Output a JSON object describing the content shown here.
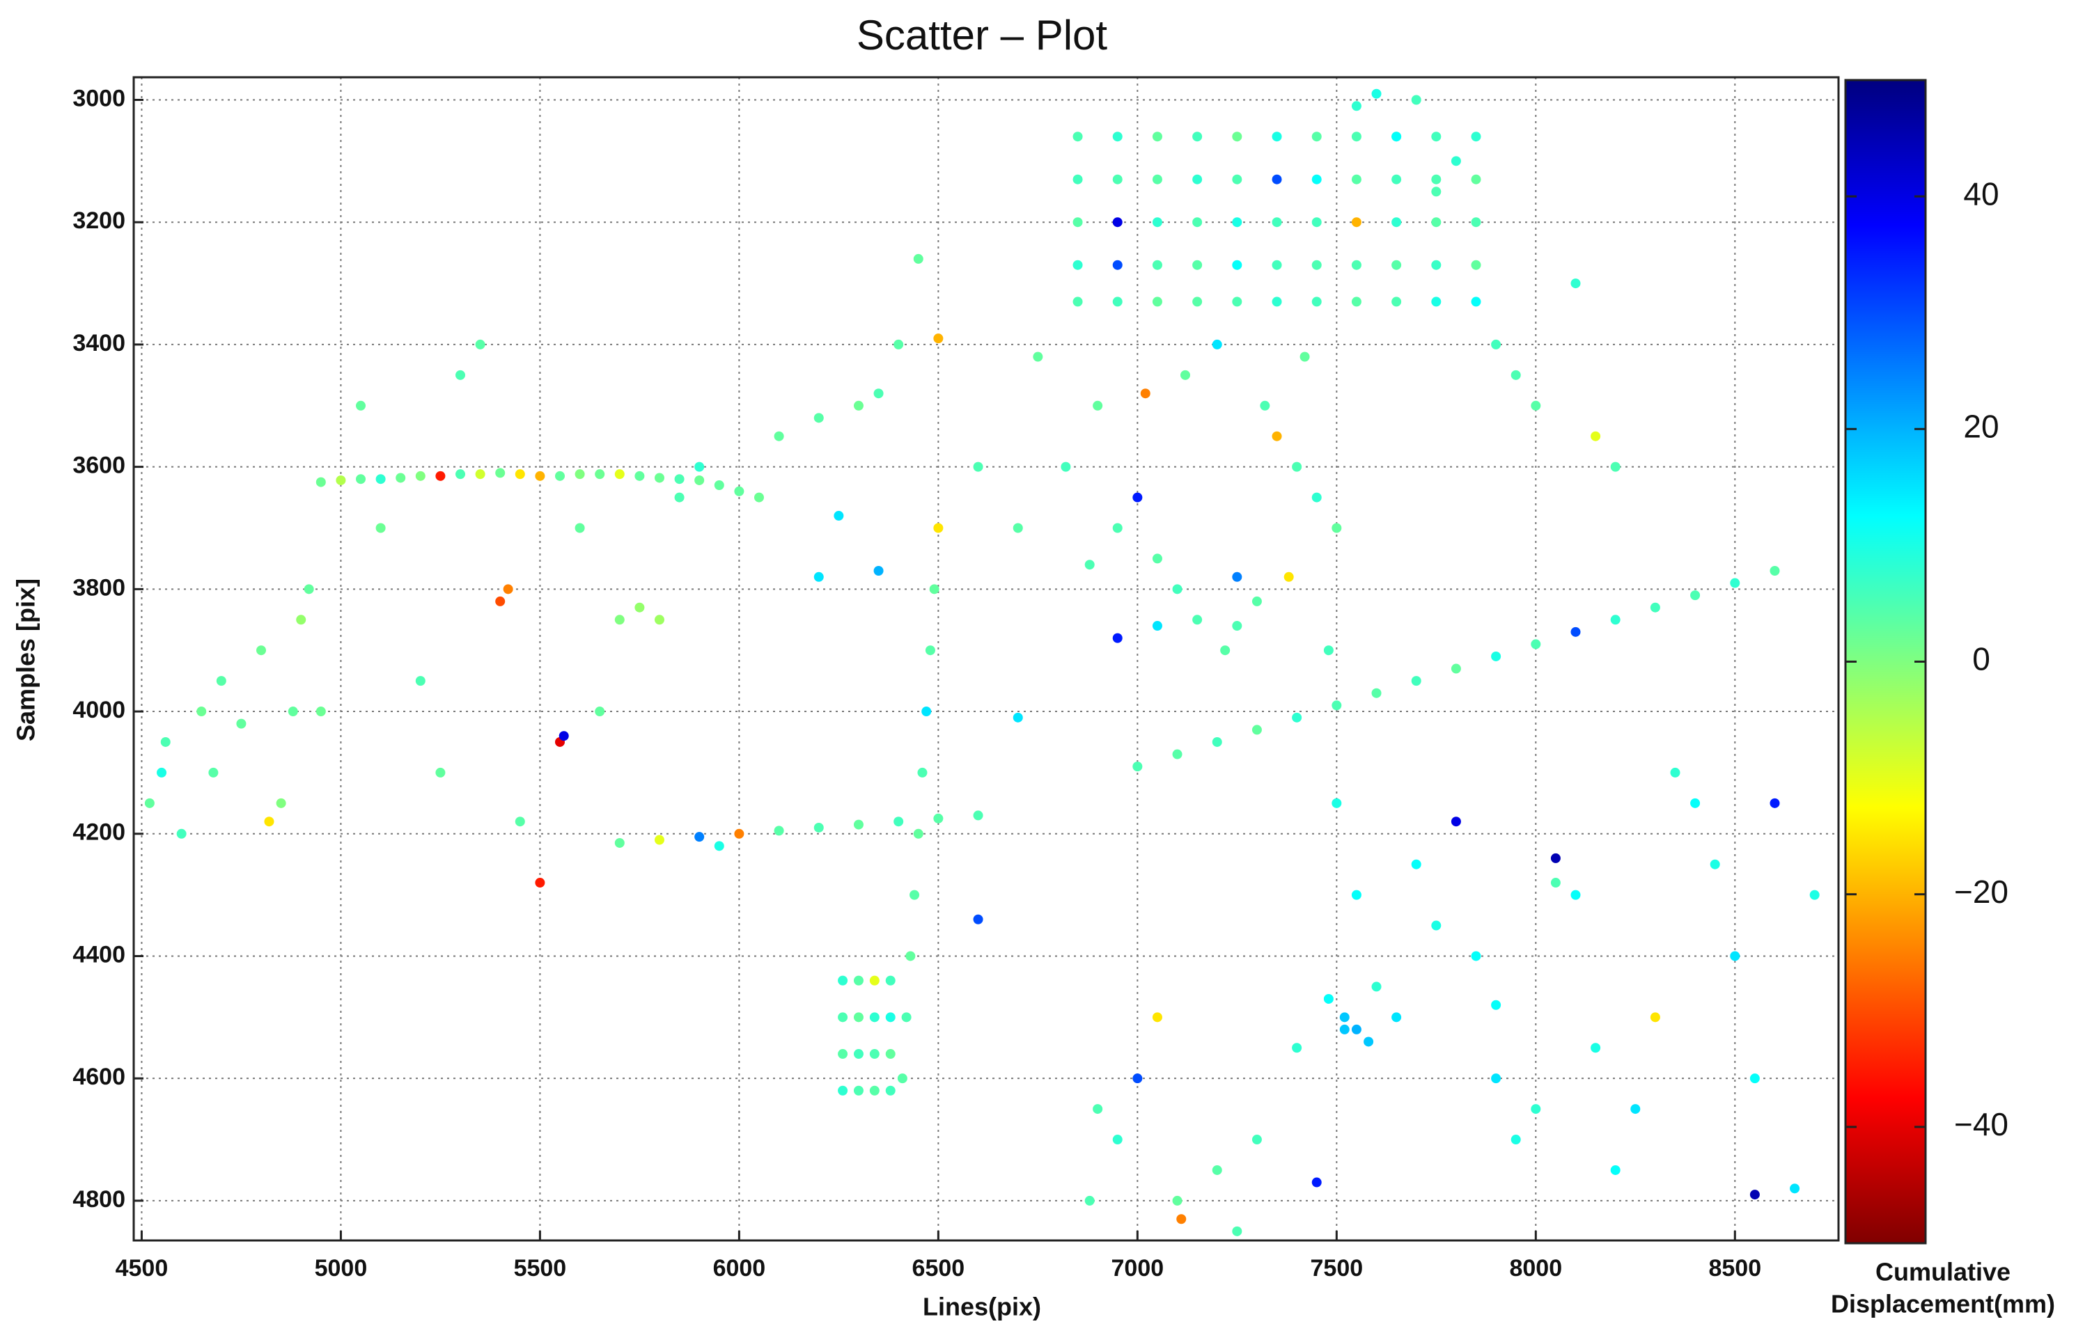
{
  "chart_data": {
    "type": "scatter",
    "title": "Scatter – Plot",
    "x_label": "Lines(pix)",
    "y_label": "Samples [pix]",
    "colorbar_label": [
      "Cumulative",
      "Displacement(mm)"
    ],
    "colormap": "jet",
    "colormap_reversed": true,
    "grid": true,
    "yaxis_reversed": true,
    "xlim": [
      4480,
      8760
    ],
    "xticks": [
      4500,
      5000,
      5500,
      6000,
      6500,
      7000,
      7500,
      8000,
      8500
    ],
    "ylim": [
      2963,
      4865
    ],
    "yticks": [
      3000,
      3200,
      3400,
      3600,
      3800,
      4000,
      4200,
      4400,
      4600,
      4800
    ],
    "clim": [
      -50,
      50
    ],
    "cticks": [
      40,
      20,
      0,
      {
        "value": -20,
        "label": "−20"
      },
      {
        "value": -40,
        "label": "−40"
      }
    ],
    "x": [
      4950,
      5000,
      5050,
      5100,
      5150,
      5200,
      5250,
      5300,
      5350,
      5400,
      5450,
      5500,
      5550,
      5600,
      5650,
      5700,
      5750,
      5800,
      5850,
      5900,
      5950,
      6000,
      6050,
      6850,
      6950,
      7050,
      7150,
      7250,
      7350,
      7450,
      7550,
      7650,
      7750,
      7850,
      6850,
      6950,
      7050,
      7150,
      7250,
      7350,
      7450,
      7550,
      7650,
      7750,
      7850,
      6850,
      6950,
      7050,
      7150,
      7250,
      7350,
      7450,
      7550,
      7650,
      7750,
      7850,
      6850,
      6950,
      7050,
      7150,
      7250,
      7350,
      7450,
      7550,
      7650,
      7750,
      7850,
      6850,
      6950,
      7050,
      7150,
      7250,
      7350,
      7450,
      7550,
      7650,
      7750,
      7850,
      7000,
      7100,
      7200,
      7300,
      7400,
      7500,
      7600,
      7700,
      7800,
      7900,
      8000,
      8100,
      8200,
      8300,
      8400,
      8500,
      8600,
      5700,
      5800,
      5900,
      6000,
      6100,
      6200,
      6300,
      6400,
      6500,
      6600,
      6500,
      6490,
      6480,
      6470,
      6460,
      6450,
      6440,
      6430,
      6420,
      6410,
      6260,
      6300,
      6340,
      6380,
      6260,
      6300,
      6340,
      6380,
      6260,
      6300,
      6340,
      6380,
      6260,
      6300,
      6340,
      6380,
      7500,
      7550,
      7600,
      7650,
      7700,
      7750,
      7800,
      7850,
      7900,
      7950,
      8000,
      8050,
      8100,
      8150,
      8200,
      8250,
      8300,
      8350,
      8400,
      8450,
      8500,
      8550,
      8600,
      8650,
      8700,
      7520,
      7580,
      7900,
      8050,
      8550,
      6900,
      6950,
      7000,
      7050,
      7100,
      7150,
      7200,
      7250,
      7300,
      7350,
      7400,
      7450,
      7500,
      6820,
      6880,
      7020,
      7120,
      7220,
      7320,
      7420,
      6950,
      7050,
      7250,
      7380,
      7480,
      4520,
      4560,
      4600,
      4650,
      4700,
      4750,
      4800,
      4850,
      4900,
      4920,
      4550,
      4680,
      4820,
      4880,
      4950,
      5050,
      5100,
      5300,
      5350,
      5400,
      5420,
      5500,
      5550,
      5560,
      5600,
      5700,
      5750,
      5800,
      5850,
      5900,
      5200,
      5250,
      5450,
      5650,
      5950,
      6100,
      6200,
      6300,
      6350,
      6400,
      6450,
      6500,
      6600,
      6700,
      6750,
      6200,
      6250,
      6350,
      6600,
      6700,
      6900,
      6950,
      7000,
      7050,
      7100,
      7200,
      7250,
      7300,
      7400,
      7450,
      7480,
      7520,
      7550,
      6880,
      7110,
      7550,
      7600,
      7650,
      7700,
      7750,
      7800,
      7900,
      7950,
      8000,
      8100,
      8150,
      8200
    ],
    "y": [
      3625,
      3622,
      3620,
      3620,
      3618,
      3615,
      3615,
      3612,
      3612,
      3610,
      3612,
      3615,
      3615,
      3612,
      3612,
      3612,
      3615,
      3618,
      3620,
      3622,
      3630,
      3640,
      3650,
      3060,
      3060,
      3060,
      3060,
      3060,
      3060,
      3060,
      3060,
      3060,
      3060,
      3060,
      3130,
      3130,
      3130,
      3130,
      3130,
      3130,
      3130,
      3130,
      3130,
      3130,
      3130,
      3200,
      3200,
      3200,
      3200,
      3200,
      3200,
      3200,
      3200,
      3200,
      3200,
      3200,
      3270,
      3270,
      3270,
      3270,
      3270,
      3270,
      3270,
      3270,
      3270,
      3270,
      3270,
      3330,
      3330,
      3330,
      3330,
      3330,
      3330,
      3330,
      3330,
      3330,
      3330,
      3330,
      4090,
      4070,
      4050,
      4030,
      4010,
      3990,
      3970,
      3950,
      3930,
      3910,
      3890,
      3870,
      3850,
      3830,
      3810,
      3790,
      3770,
      4215,
      4210,
      4205,
      4200,
      4195,
      4190,
      4185,
      4180,
      4175,
      4170,
      3700,
      3800,
      3900,
      4000,
      4100,
      4200,
      4300,
      4400,
      4500,
      4600,
      4440,
      4440,
      4440,
      4440,
      4500,
      4500,
      4500,
      4500,
      4560,
      4560,
      4560,
      4560,
      4620,
      4620,
      4620,
      4620,
      4150,
      4300,
      4450,
      4500,
      4250,
      4350,
      4180,
      4400,
      4600,
      4700,
      4650,
      4240,
      4300,
      4550,
      4750,
      4650,
      4500,
      4100,
      4150,
      4250,
      4400,
      4600,
      4150,
      4780,
      4300,
      4520,
      4540,
      4480,
      4280,
      4790,
      3500,
      3700,
      3650,
      3750,
      3800,
      3850,
      3400,
      3780,
      3820,
      3550,
      3600,
      3650,
      3700,
      3600,
      3760,
      3480,
      3450,
      3900,
      3500,
      3420,
      3880,
      3860,
      3860,
      3780,
      3900,
      4150,
      4050,
      4200,
      4000,
      3950,
      4020,
      3900,
      4150,
      3850,
      3800,
      4100,
      4100,
      4180,
      4000,
      4000,
      3500,
      3700,
      3450,
      3400,
      3820,
      3800,
      4280,
      4050,
      4040,
      3700,
      3850,
      3830,
      3850,
      3650,
      3600,
      3950,
      4100,
      4180,
      4000,
      4220,
      3550,
      3520,
      3500,
      3480,
      3400,
      3260,
      3390,
      3600,
      3700,
      3420,
      3780,
      3680,
      3770,
      4340,
      4010,
      4650,
      4700,
      4600,
      4500,
      4800,
      4750,
      4850,
      4700,
      4550,
      4770,
      4470,
      4500,
      4520,
      4800,
      4830,
      3010,
      2990,
      3060,
      3000,
      3150,
      3100,
      3400,
      3450,
      3500,
      3300,
      3550,
      3600
    ],
    "values": [
      2,
      -5,
      3,
      8,
      2,
      0,
      -35,
      5,
      -8,
      2,
      -15,
      -20,
      3,
      0,
      2,
      -10,
      3,
      2,
      5,
      2,
      3,
      3,
      2,
      5,
      8,
      3,
      6,
      2,
      10,
      4,
      5,
      3,
      6,
      8,
      6,
      5,
      4,
      8,
      5,
      30,
      12,
      4,
      6,
      5,
      3,
      4,
      40,
      8,
      5,
      10,
      6,
      6,
      -20,
      8,
      4,
      5,
      8,
      30,
      5,
      4,
      12,
      6,
      5,
      5,
      4,
      7,
      3,
      5,
      6,
      3,
      4,
      5,
      8,
      6,
      4,
      5,
      10,
      12,
      5,
      4,
      6,
      3,
      8,
      5,
      4,
      6,
      3,
      10,
      5,
      30,
      8,
      6,
      5,
      8,
      4,
      3,
      -10,
      25,
      -25,
      4,
      5,
      3,
      6,
      4,
      5,
      -15,
      3,
      4,
      15,
      5,
      3,
      4,
      3,
      5,
      4,
      8,
      4,
      -10,
      6,
      5,
      3,
      8,
      10,
      4,
      6,
      5,
      3,
      8,
      5,
      4,
      6,
      10,
      12,
      8,
      15,
      12,
      10,
      40,
      12,
      15,
      10,
      8,
      45,
      12,
      10,
      12,
      15,
      -15,
      8,
      12,
      10,
      15,
      12,
      35,
      15,
      10,
      18,
      18,
      12,
      5,
      45,
      3,
      5,
      35,
      4,
      6,
      5,
      15,
      25,
      4,
      -20,
      5,
      8,
      3,
      6,
      5,
      -25,
      3,
      4,
      5,
      3,
      35,
      15,
      5,
      -15,
      6,
      3,
      5,
      6,
      2,
      4,
      3,
      2,
      0,
      -2,
      3,
      10,
      4,
      -15,
      3,
      2,
      3,
      2,
      5,
      4,
      -30,
      -25,
      -35,
      -40,
      40,
      3,
      0,
      -2,
      -3,
      5,
      8,
      5,
      3,
      4,
      3,
      10,
      3,
      4,
      2,
      5,
      4,
      3,
      -20,
      5,
      4,
      3,
      15,
      15,
      20,
      30,
      15,
      5,
      8,
      30,
      -15,
      3,
      4,
      5,
      6,
      8,
      35,
      12,
      18,
      20,
      5,
      -25,
      8,
      10,
      12,
      6,
      5,
      8,
      6,
      5,
      4,
      8,
      -10,
      5
    ]
  }
}
